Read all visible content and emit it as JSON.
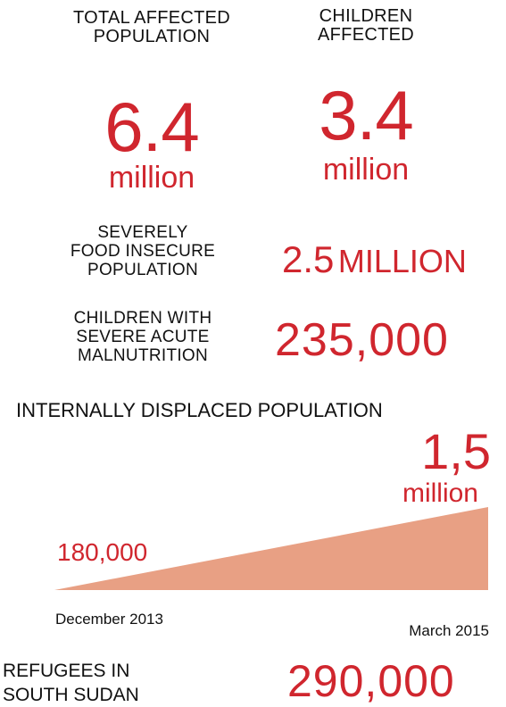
{
  "total_affected": {
    "label": [
      "TOTAL AFFECTED",
      "POPULATION"
    ],
    "value": "6.4",
    "unit": "million"
  },
  "children_affected": {
    "label": [
      "CHILDREN",
      "AFFECTED"
    ],
    "value": "3.4",
    "unit": "million"
  },
  "food_insecure": {
    "label": [
      "SEVERELY",
      "FOOD INSECURE",
      "POPULATION"
    ],
    "value": "2.5",
    "unit": "MILLION"
  },
  "malnutrition": {
    "label": [
      "CHILDREN WITH",
      "SEVERE ACUTE",
      "MALNUTRITION"
    ],
    "value": "235,000"
  },
  "idp": {
    "title": "INTERNALLY DISPLACED POPULATION",
    "end_value": "1,5",
    "end_unit": "million",
    "start_value": "180,000",
    "start_date": "December 2013",
    "end_date": "March 2015",
    "fill_color": "#e8a084"
  },
  "refugees": {
    "label": [
      "REFUGEES IN",
      "SOUTH SUDAN"
    ],
    "value": "290,000"
  },
  "colors": {
    "accent": "#d0262e",
    "text": "#111111"
  }
}
